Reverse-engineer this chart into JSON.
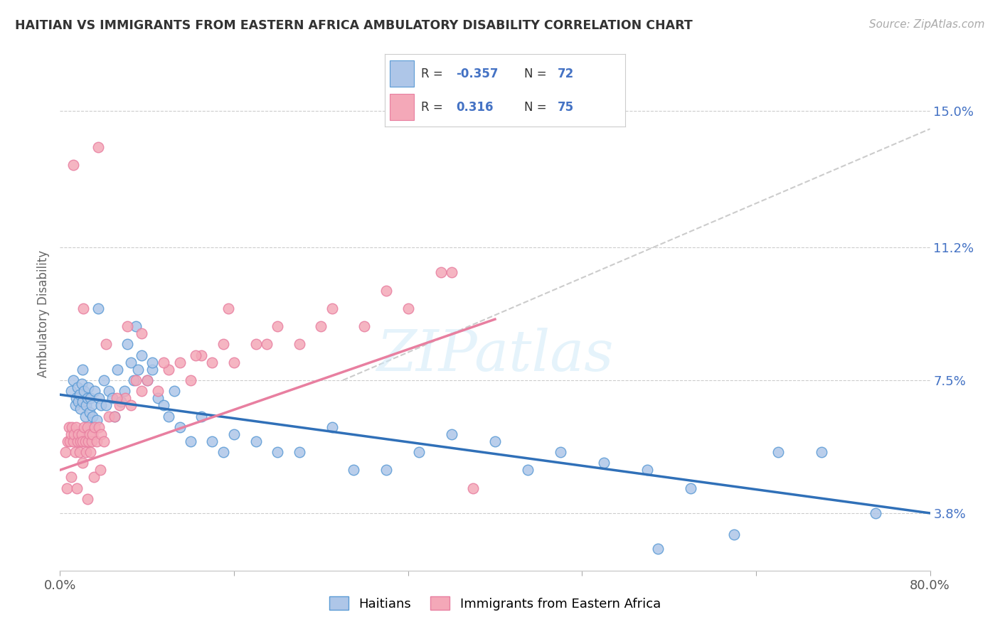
{
  "title": "HAITIAN VS IMMIGRANTS FROM EASTERN AFRICA AMBULATORY DISABILITY CORRELATION CHART",
  "source": "Source: ZipAtlas.com",
  "ylabel": "Ambulatory Disability",
  "ytick_labels": [
    "3.8%",
    "7.5%",
    "11.2%",
    "15.0%"
  ],
  "ytick_values": [
    3.8,
    7.5,
    11.2,
    15.0
  ],
  "xmin": 0.0,
  "xmax": 80.0,
  "ymin": 2.2,
  "ymax": 16.5,
  "haitian_color": "#aec6e8",
  "eastern_africa_color": "#f4a8b8",
  "haitian_edge_color": "#5b9bd5",
  "eastern_africa_edge_color": "#e87fa0",
  "haitian_line_color": "#3070b8",
  "eastern_africa_line_color": "#e87fa0",
  "legend_label_haitian": "Haitians",
  "legend_label_eastern": "Immigrants from Eastern Africa",
  "background_color": "#ffffff",
  "grid_color": "#cccccc",
  "haitian_line_start_x": 0.0,
  "haitian_line_start_y": 7.1,
  "haitian_line_end_x": 80.0,
  "haitian_line_end_y": 3.8,
  "eastern_line_start_x": 0.0,
  "eastern_line_start_y": 5.0,
  "eastern_line_end_x": 40.0,
  "eastern_line_end_y": 9.2,
  "dashed_line_start_x": 26.0,
  "dashed_line_start_y": 7.5,
  "dashed_line_end_x": 80.0,
  "dashed_line_end_y": 14.5,
  "haitian_scatter_x": [
    1.0,
    1.2,
    1.4,
    1.5,
    1.6,
    1.7,
    1.8,
    1.9,
    2.0,
    2.1,
    2.2,
    2.3,
    2.4,
    2.5,
    2.6,
    2.7,
    2.8,
    2.9,
    3.0,
    3.2,
    3.4,
    3.6,
    3.8,
    4.0,
    4.2,
    4.5,
    4.8,
    5.0,
    5.3,
    5.6,
    5.9,
    6.2,
    6.5,
    6.8,
    7.0,
    7.5,
    8.0,
    8.5,
    9.0,
    9.5,
    10.0,
    11.0,
    12.0,
    13.0,
    14.0,
    15.0,
    16.0,
    18.0,
    20.0,
    22.0,
    25.0,
    27.0,
    30.0,
    33.0,
    36.0,
    40.0,
    43.0,
    46.0,
    50.0,
    54.0,
    58.0,
    62.0,
    66.0,
    70.0,
    75.0,
    2.1,
    2.8,
    3.5,
    7.2,
    8.5,
    10.5,
    55.0
  ],
  "haitian_scatter_y": [
    7.2,
    7.5,
    6.8,
    7.0,
    7.3,
    6.9,
    7.1,
    6.7,
    7.4,
    6.9,
    7.2,
    6.5,
    6.8,
    7.0,
    7.3,
    6.6,
    7.0,
    6.8,
    6.5,
    7.2,
    6.4,
    7.0,
    6.8,
    7.5,
    6.8,
    7.2,
    7.0,
    6.5,
    7.8,
    6.9,
    7.2,
    8.5,
    8.0,
    7.5,
    9.0,
    8.2,
    7.5,
    7.8,
    7.0,
    6.8,
    6.5,
    6.2,
    5.8,
    6.5,
    5.8,
    5.5,
    6.0,
    5.8,
    5.5,
    5.5,
    6.2,
    5.0,
    5.0,
    5.5,
    6.0,
    5.8,
    5.0,
    5.5,
    5.2,
    5.0,
    4.5,
    3.2,
    5.5,
    5.5,
    3.8,
    7.8,
    6.2,
    9.5,
    7.8,
    8.0,
    7.2,
    2.8
  ],
  "eastern_scatter_x": [
    0.5,
    0.7,
    0.8,
    0.9,
    1.0,
    1.1,
    1.2,
    1.3,
    1.4,
    1.5,
    1.6,
    1.7,
    1.8,
    1.9,
    2.0,
    2.1,
    2.2,
    2.3,
    2.4,
    2.5,
    2.6,
    2.7,
    2.8,
    2.9,
    3.0,
    3.2,
    3.4,
    3.6,
    3.8,
    4.0,
    4.5,
    5.0,
    5.5,
    6.0,
    6.5,
    7.0,
    7.5,
    8.0,
    9.0,
    10.0,
    11.0,
    12.0,
    13.0,
    14.0,
    15.0,
    16.0,
    18.0,
    20.0,
    22.0,
    25.0,
    28.0,
    32.0,
    36.0,
    0.6,
    1.05,
    1.55,
    2.05,
    2.55,
    3.1,
    3.7,
    4.2,
    5.2,
    6.2,
    7.5,
    9.5,
    12.5,
    15.5,
    19.0,
    24.0,
    30.0,
    35.0,
    1.25,
    2.15,
    3.5,
    38.0
  ],
  "eastern_scatter_y": [
    5.5,
    5.8,
    6.2,
    5.8,
    6.0,
    6.2,
    5.8,
    6.0,
    5.5,
    6.2,
    5.8,
    6.0,
    5.5,
    5.8,
    6.0,
    5.8,
    6.2,
    5.8,
    5.5,
    6.2,
    5.8,
    6.0,
    5.5,
    5.8,
    6.0,
    6.2,
    5.8,
    6.2,
    6.0,
    5.8,
    6.5,
    6.5,
    6.8,
    7.0,
    6.8,
    7.5,
    7.2,
    7.5,
    7.2,
    7.8,
    8.0,
    7.5,
    8.2,
    8.0,
    8.5,
    8.0,
    8.5,
    9.0,
    8.5,
    9.5,
    9.0,
    9.5,
    10.5,
    4.5,
    4.8,
    4.5,
    5.2,
    4.2,
    4.8,
    5.0,
    8.5,
    7.0,
    9.0,
    8.8,
    8.0,
    8.2,
    9.5,
    8.5,
    9.0,
    10.0,
    10.5,
    13.5,
    9.5,
    14.0,
    4.5
  ]
}
